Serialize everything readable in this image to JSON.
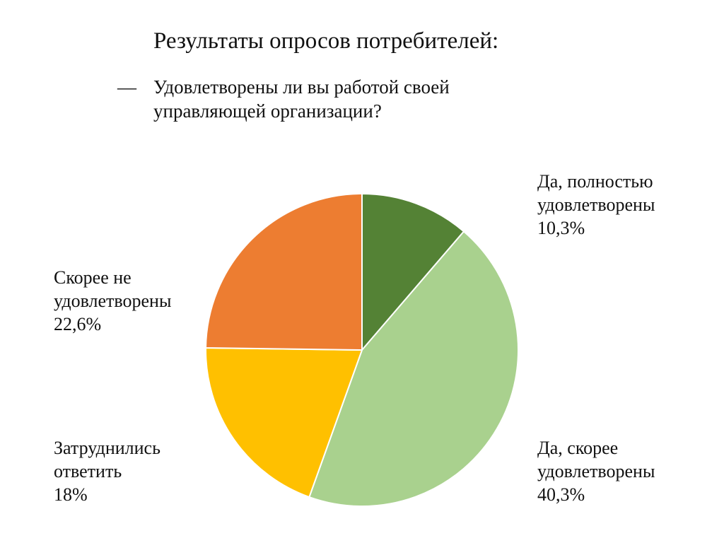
{
  "header": {
    "title": "Результаты опросов потребителей:",
    "bullet": "—",
    "question": "Удовлетворены ли вы работой своей управляющей организации?"
  },
  "chart_data": {
    "type": "pie",
    "title": "",
    "slices": [
      {
        "name_lines": [
          "Да, полностью",
          "удовлетворены"
        ],
        "label": "Да, полностью удовлетворены",
        "value": 10.3,
        "value_label": "10,3%",
        "color": "#548235"
      },
      {
        "name_lines": [
          "Да, скорее",
          "удовлетворены"
        ],
        "label": "Да, скорее удовлетворены",
        "value": 40.3,
        "value_label": "40,3%",
        "color": "#A9D18E"
      },
      {
        "name_lines": [
          "Затруднились",
          "ответить"
        ],
        "label": "Затруднились ответить",
        "value": 18,
        "value_label": "18%",
        "color": "#FFC000"
      },
      {
        "name_lines": [
          "Скорее не",
          "удовлетворены"
        ],
        "label": "Скорее не удовлетворены",
        "value": 22.6,
        "value_label": "22,6%",
        "color": "#ED7D31"
      }
    ],
    "start": "12 o'clock",
    "direction": "clockwise",
    "legend": "none"
  }
}
